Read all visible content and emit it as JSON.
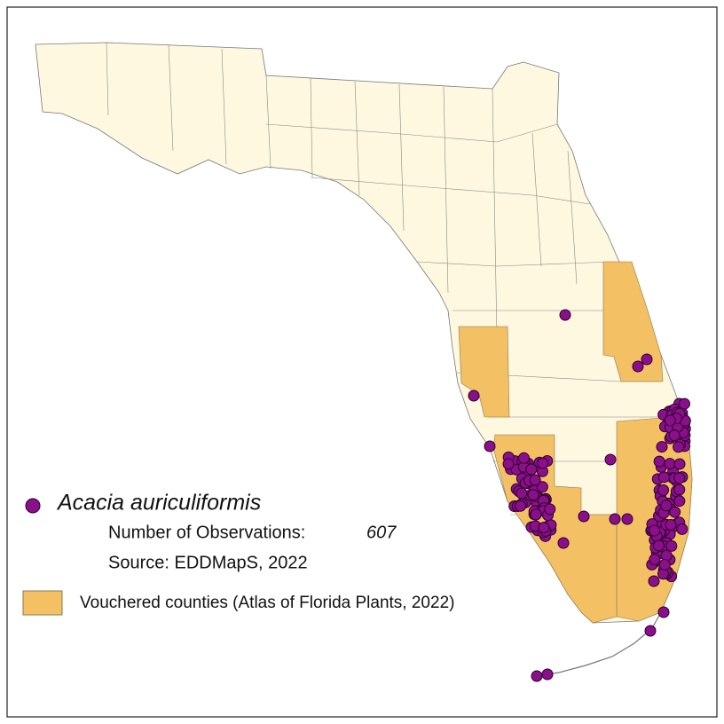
{
  "legend": {
    "species": "Acacia auriculiformis",
    "observations_label": "Number of Observations:",
    "observations_count": 607,
    "source": "Source: EDDMapS, 2022",
    "vouchered": "Vouchered counties (Atlas of Florida Plants, 2022)"
  }
}
